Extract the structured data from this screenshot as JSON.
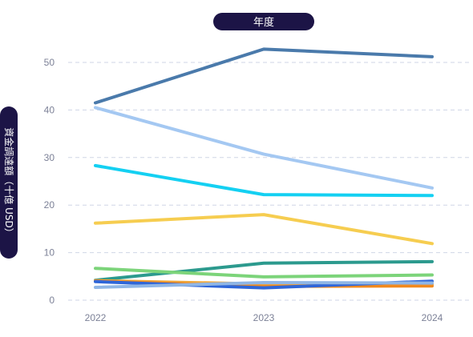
{
  "chart_data": {
    "type": "line",
    "title": "年度",
    "xlabel": "",
    "ylabel": "資金調達額（十億 USD）",
    "categories": [
      "2022",
      "2023",
      "2024"
    ],
    "yticks": [
      0,
      10,
      20,
      30,
      40,
      50
    ],
    "ylim": [
      0,
      54
    ],
    "grid": true,
    "legend": "none",
    "series": [
      {
        "color": "#4a7aab",
        "values": [
          41.5,
          52.8,
          51.2
        ]
      },
      {
        "color": "#a4c8f2",
        "values": [
          40.5,
          30.7,
          23.6
        ]
      },
      {
        "color": "#14d0f2",
        "values": [
          28.3,
          22.2,
          22.0
        ]
      },
      {
        "color": "#f6cd50",
        "values": [
          16.2,
          18.0,
          11.9
        ]
      },
      {
        "color": "#2c9a8e",
        "values": [
          4.2,
          7.8,
          8.1
        ]
      },
      {
        "color": "#7cd47a",
        "values": [
          6.7,
          4.9,
          5.3
        ]
      },
      {
        "color": "#f0a93c",
        "values": [
          4.1,
          3.4,
          3.3
        ]
      },
      {
        "color": "#f28a1e",
        "values": [
          4.0,
          2.9,
          3.0
        ]
      },
      {
        "color": "#2f66d8",
        "values": [
          3.9,
          2.6,
          4.0
        ]
      },
      {
        "color": "#8fb6e6",
        "values": [
          2.7,
          3.7,
          3.6
        ]
      }
    ]
  }
}
